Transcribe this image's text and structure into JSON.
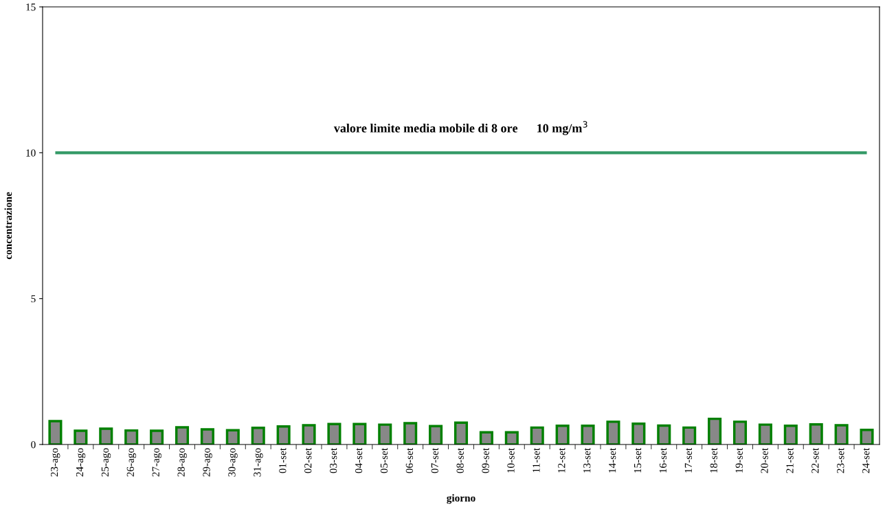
{
  "chart_data": {
    "type": "bar",
    "xlabel": "giorno",
    "ylabel": "concentrazione",
    "categories": [
      "23-ago",
      "24-ago",
      "25-ago",
      "26-ago",
      "27-ago",
      "28-ago",
      "29-ago",
      "30-ago",
      "31-ago",
      "01-set",
      "02-set",
      "03-set",
      "04-set",
      "05-set",
      "06-set",
      "07-set",
      "08-set",
      "09-set",
      "10-set",
      "11-set",
      "12-set",
      "13-set",
      "14-set",
      "15-set",
      "16-set",
      "17-set",
      "18-set",
      "19-set",
      "20-set",
      "21-set",
      "22-set",
      "23-set",
      "24-set"
    ],
    "values": [
      0.8,
      0.47,
      0.54,
      0.48,
      0.47,
      0.59,
      0.52,
      0.49,
      0.57,
      0.62,
      0.66,
      0.7,
      0.7,
      0.68,
      0.73,
      0.63,
      0.75,
      0.42,
      0.42,
      0.58,
      0.64,
      0.64,
      0.78,
      0.71,
      0.65,
      0.58,
      0.88,
      0.78,
      0.68,
      0.64,
      0.69,
      0.66,
      0.5
    ],
    "color": "#888888",
    "ylim": [
      0,
      15
    ],
    "yticks": [
      0,
      5,
      10,
      15
    ],
    "grid": false,
    "legend": false,
    "ref_lines": [
      {
        "axis": "y",
        "value": 10,
        "label": "valore limite media mobile di 8 ore      10 mg/m$^{3}$",
        "color": "#339966"
      }
    ]
  }
}
